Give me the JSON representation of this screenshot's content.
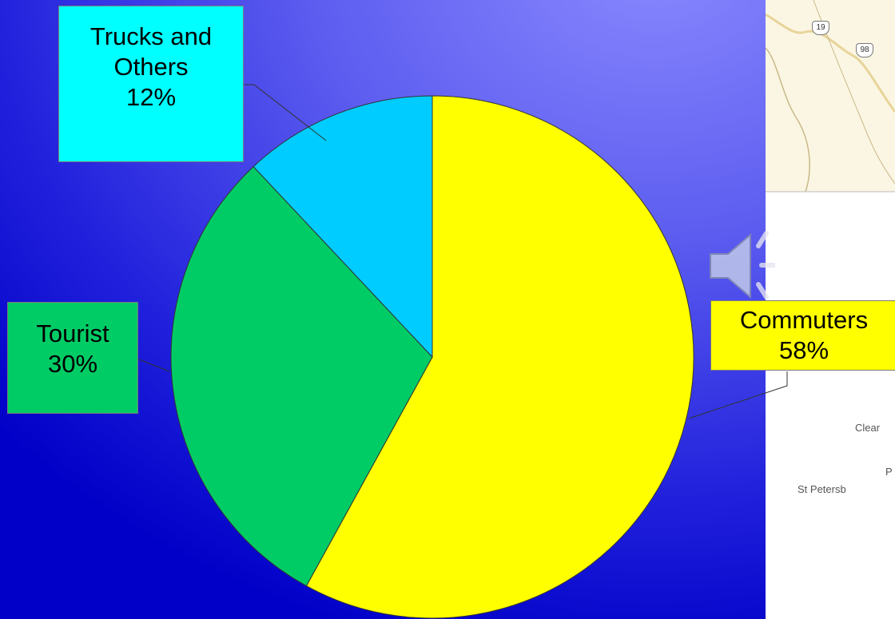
{
  "chart_data": {
    "type": "pie",
    "title": "",
    "slices": [
      {
        "label": "Commuters",
        "value": 58,
        "value_label": "58%",
        "color": "#ffff00"
      },
      {
        "label": "Tourist",
        "value": 30,
        "value_label": "30%",
        "color": "#00cc66"
      },
      {
        "label": "Trucks and Others",
        "value": 12,
        "value_label": "12%",
        "color": "#00ccff"
      }
    ],
    "start_angle_deg": 0,
    "direction": "clockwise",
    "legend": "none",
    "labels": {
      "trucks": {
        "line1": "Trucks and",
        "line2": "Others",
        "value": "12%",
        "box_color": "#00ffff"
      },
      "tourist": {
        "line1": "Tourist",
        "value": "30%",
        "box_color": "#00cc66"
      },
      "commuters": {
        "line1": "Commuters",
        "value": "58%",
        "box_color": "#ffff00"
      }
    }
  },
  "map": {
    "shields": [
      "19",
      "98"
    ],
    "places": [
      "Clear",
      "P",
      "St Petersb"
    ]
  },
  "icons": {
    "speaker": "speaker-icon"
  }
}
